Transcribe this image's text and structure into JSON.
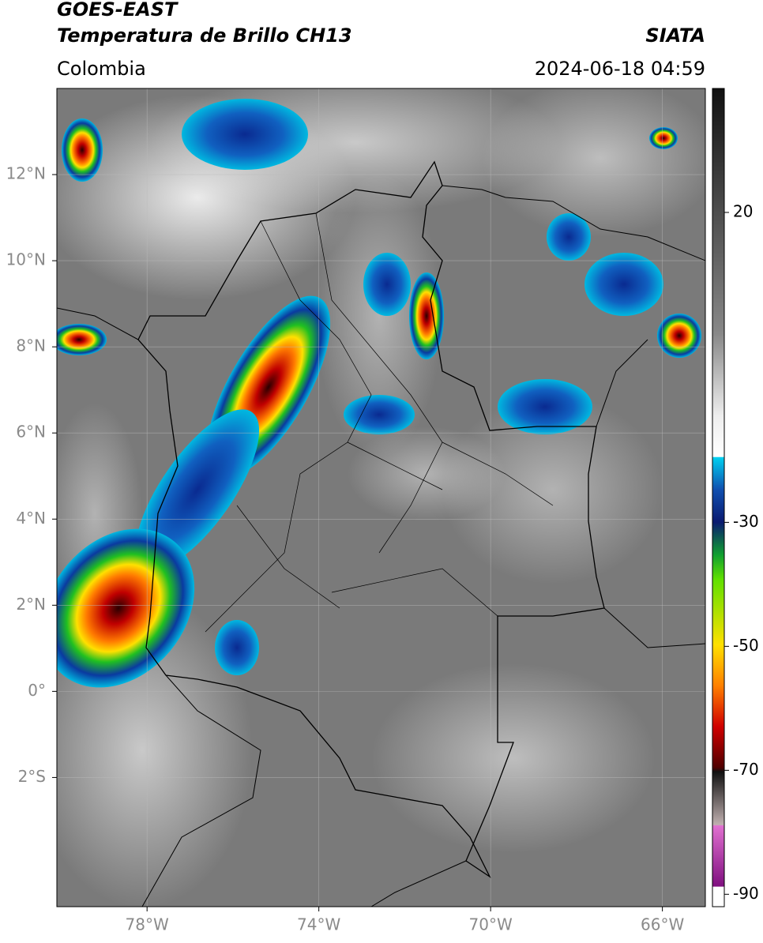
{
  "chart_data": {
    "type": "map",
    "title": "GOES-EAST",
    "subtitle": "Temperatura de Brillo CH13",
    "region": "Colombia",
    "source": "SIATA",
    "datetime": "2024-06-18 04:59",
    "xlim": [
      -80.1,
      -65
    ],
    "ylim": [
      -5,
      14
    ],
    "xticks": [
      {
        "value": -78,
        "label": "78°W"
      },
      {
        "value": -74,
        "label": "74°W"
      },
      {
        "value": -70,
        "label": "70°W"
      },
      {
        "value": -66,
        "label": "66°W"
      }
    ],
    "yticks": [
      {
        "value": 12,
        "label": "12°N"
      },
      {
        "value": 10,
        "label": "10°N"
      },
      {
        "value": 8,
        "label": "8°N"
      },
      {
        "value": 6,
        "label": "6°N"
      },
      {
        "value": 4,
        "label": "4°N"
      },
      {
        "value": 2,
        "label": "2°N"
      },
      {
        "value": 0,
        "label": "0°"
      },
      {
        "value": -2,
        "label": "2°S"
      }
    ],
    "grid": true,
    "colorbar": {
      "lim": [
        -92,
        40
      ],
      "ticks": [
        20,
        -30,
        -50,
        -70,
        -90
      ]
    }
  }
}
